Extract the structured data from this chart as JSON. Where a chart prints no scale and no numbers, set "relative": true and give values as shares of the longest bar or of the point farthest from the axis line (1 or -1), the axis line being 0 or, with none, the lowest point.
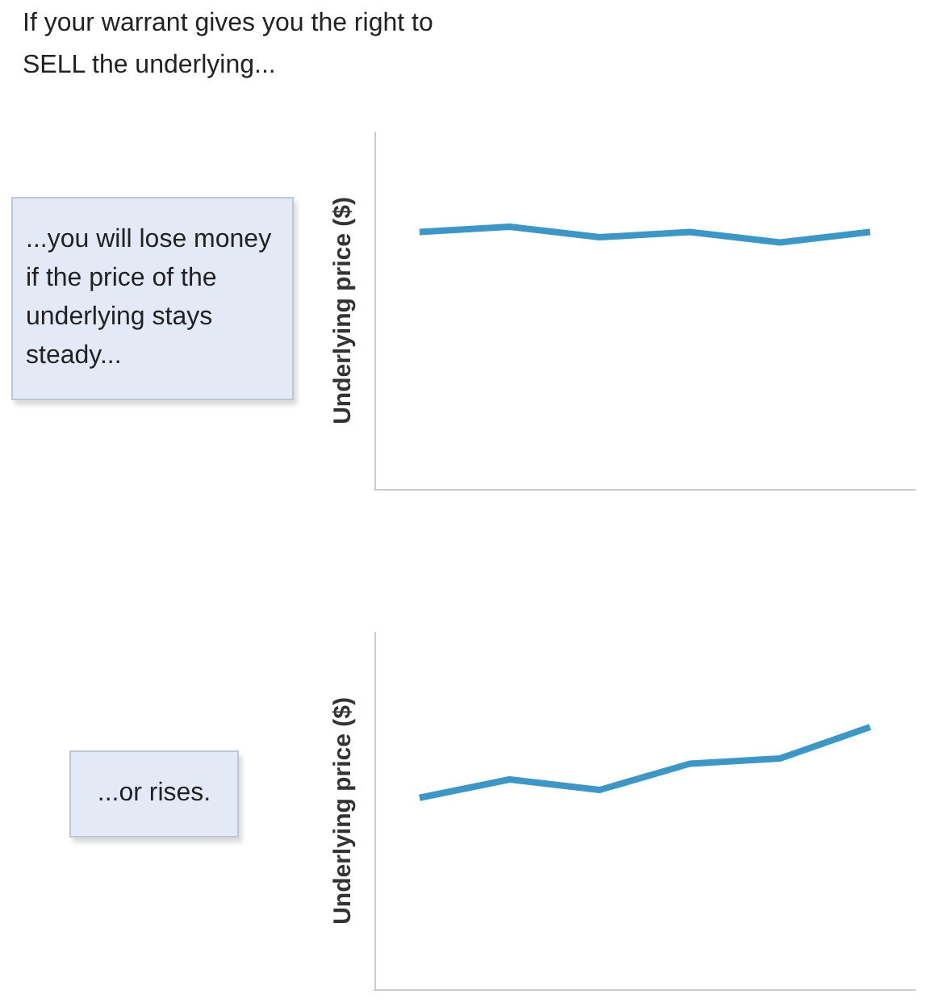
{
  "chart_data": [
    {
      "type": "line",
      "title": "If your warrant gives you the right to SELL the underlying...",
      "ylabel": "Underlying price ($)",
      "annotations": [
        "...you will lose money if the price of the underlying stays steady..."
      ],
      "relative": true,
      "categories": [
        null,
        null,
        null,
        null,
        null,
        null
      ],
      "series": [
        {
          "color": "#3a98c9",
          "values": [
            0.98,
            1,
            0.96,
            0.98,
            0.94,
            0.98
          ]
        }
      ]
    },
    {
      "type": "line",
      "ylabel": "Underlying price ($)",
      "annotations": [
        "...or rises."
      ],
      "relative": true,
      "categories": [
        null,
        null,
        null,
        null,
        null,
        null
      ],
      "series": [
        {
          "color": "#3a98c9",
          "values": [
            0.73,
            0.8,
            0.76,
            0.86,
            0.88,
            1
          ]
        }
      ]
    }
  ]
}
